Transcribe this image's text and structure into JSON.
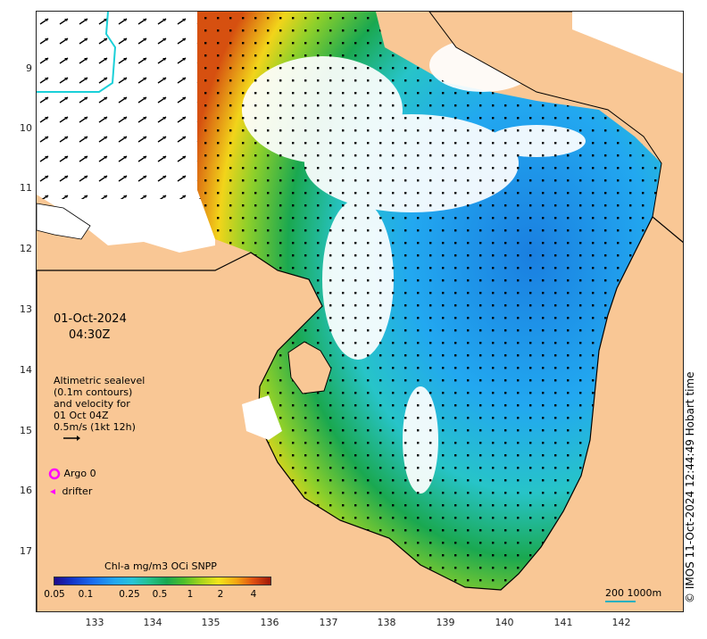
{
  "map": {
    "date": "01-Oct-2024",
    "time": "04:30Z",
    "altimetry_lines": [
      "Altimetric sealevel",
      "(0.1m contours)",
      "and velocity for",
      "01 Oct 04Z",
      "0.5m/s (1kt 12h)"
    ],
    "argo_label": "Argo 0",
    "drifter_label": "drifter",
    "colorbar_title": "Chl-a mg/m3 OCi SNPP",
    "colorbar_ticks": [
      "0.05",
      "0.1",
      "0.25",
      "0.5",
      "1",
      "2",
      "4"
    ],
    "scale_label": "200  1000m",
    "credit": "© IMOS 11-Oct-2024 12:44:49 Hobart time",
    "y_ticks": [
      "9",
      "10",
      "11",
      "12",
      "13",
      "14",
      "15",
      "16",
      "17"
    ],
    "x_ticks": [
      "133",
      "134",
      "135",
      "136",
      "137",
      "138",
      "139",
      "140",
      "141",
      "142"
    ],
    "colors": {
      "land": "#f9c795",
      "no_data": "#ffffff",
      "low_chl": "#22a8f0",
      "mid_chl": "#1aa850",
      "high_chl": "#e05010",
      "argo": "#ff00ff",
      "contour_200m": "#1ab0c0"
    }
  }
}
